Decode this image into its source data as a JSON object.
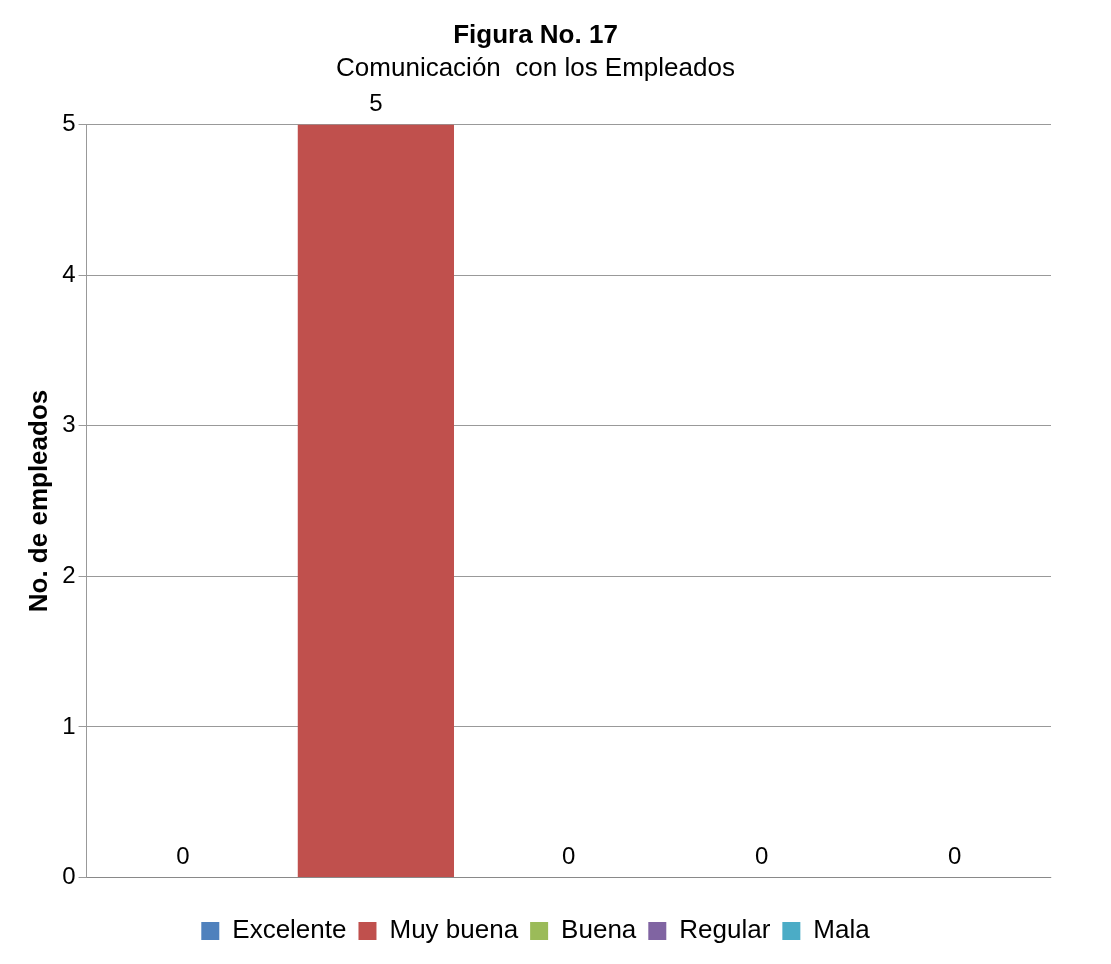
{
  "chart_data": {
    "type": "bar",
    "title": "Figura No. 17",
    "subtitle": "Comunicación  con los Empleados",
    "ylabel": "No. de empleados",
    "categories": [
      null,
      null,
      null,
      null,
      null
    ],
    "series": [
      {
        "name": "Excelente",
        "color": "#4f81bd",
        "values": [
          0,
          null,
          null,
          null,
          null
        ]
      },
      {
        "name": "Muy buena",
        "color": "#c0504d",
        "values": [
          null,
          5,
          null,
          null,
          null
        ]
      },
      {
        "name": "Buena",
        "color": "#9bbb59",
        "values": [
          null,
          null,
          0,
          null,
          null
        ]
      },
      {
        "name": "Regular",
        "color": "#8064a2",
        "values": [
          null,
          null,
          null,
          0,
          null
        ]
      },
      {
        "name": "Mala",
        "color": "#4bacc6",
        "values": [
          null,
          null,
          null,
          null,
          0
        ]
      }
    ],
    "ylim": [
      0,
      5
    ],
    "yticks": [
      0,
      1,
      2,
      3,
      4,
      5
    ],
    "grid": "y",
    "legend": "bottom",
    "data_labels": true
  }
}
